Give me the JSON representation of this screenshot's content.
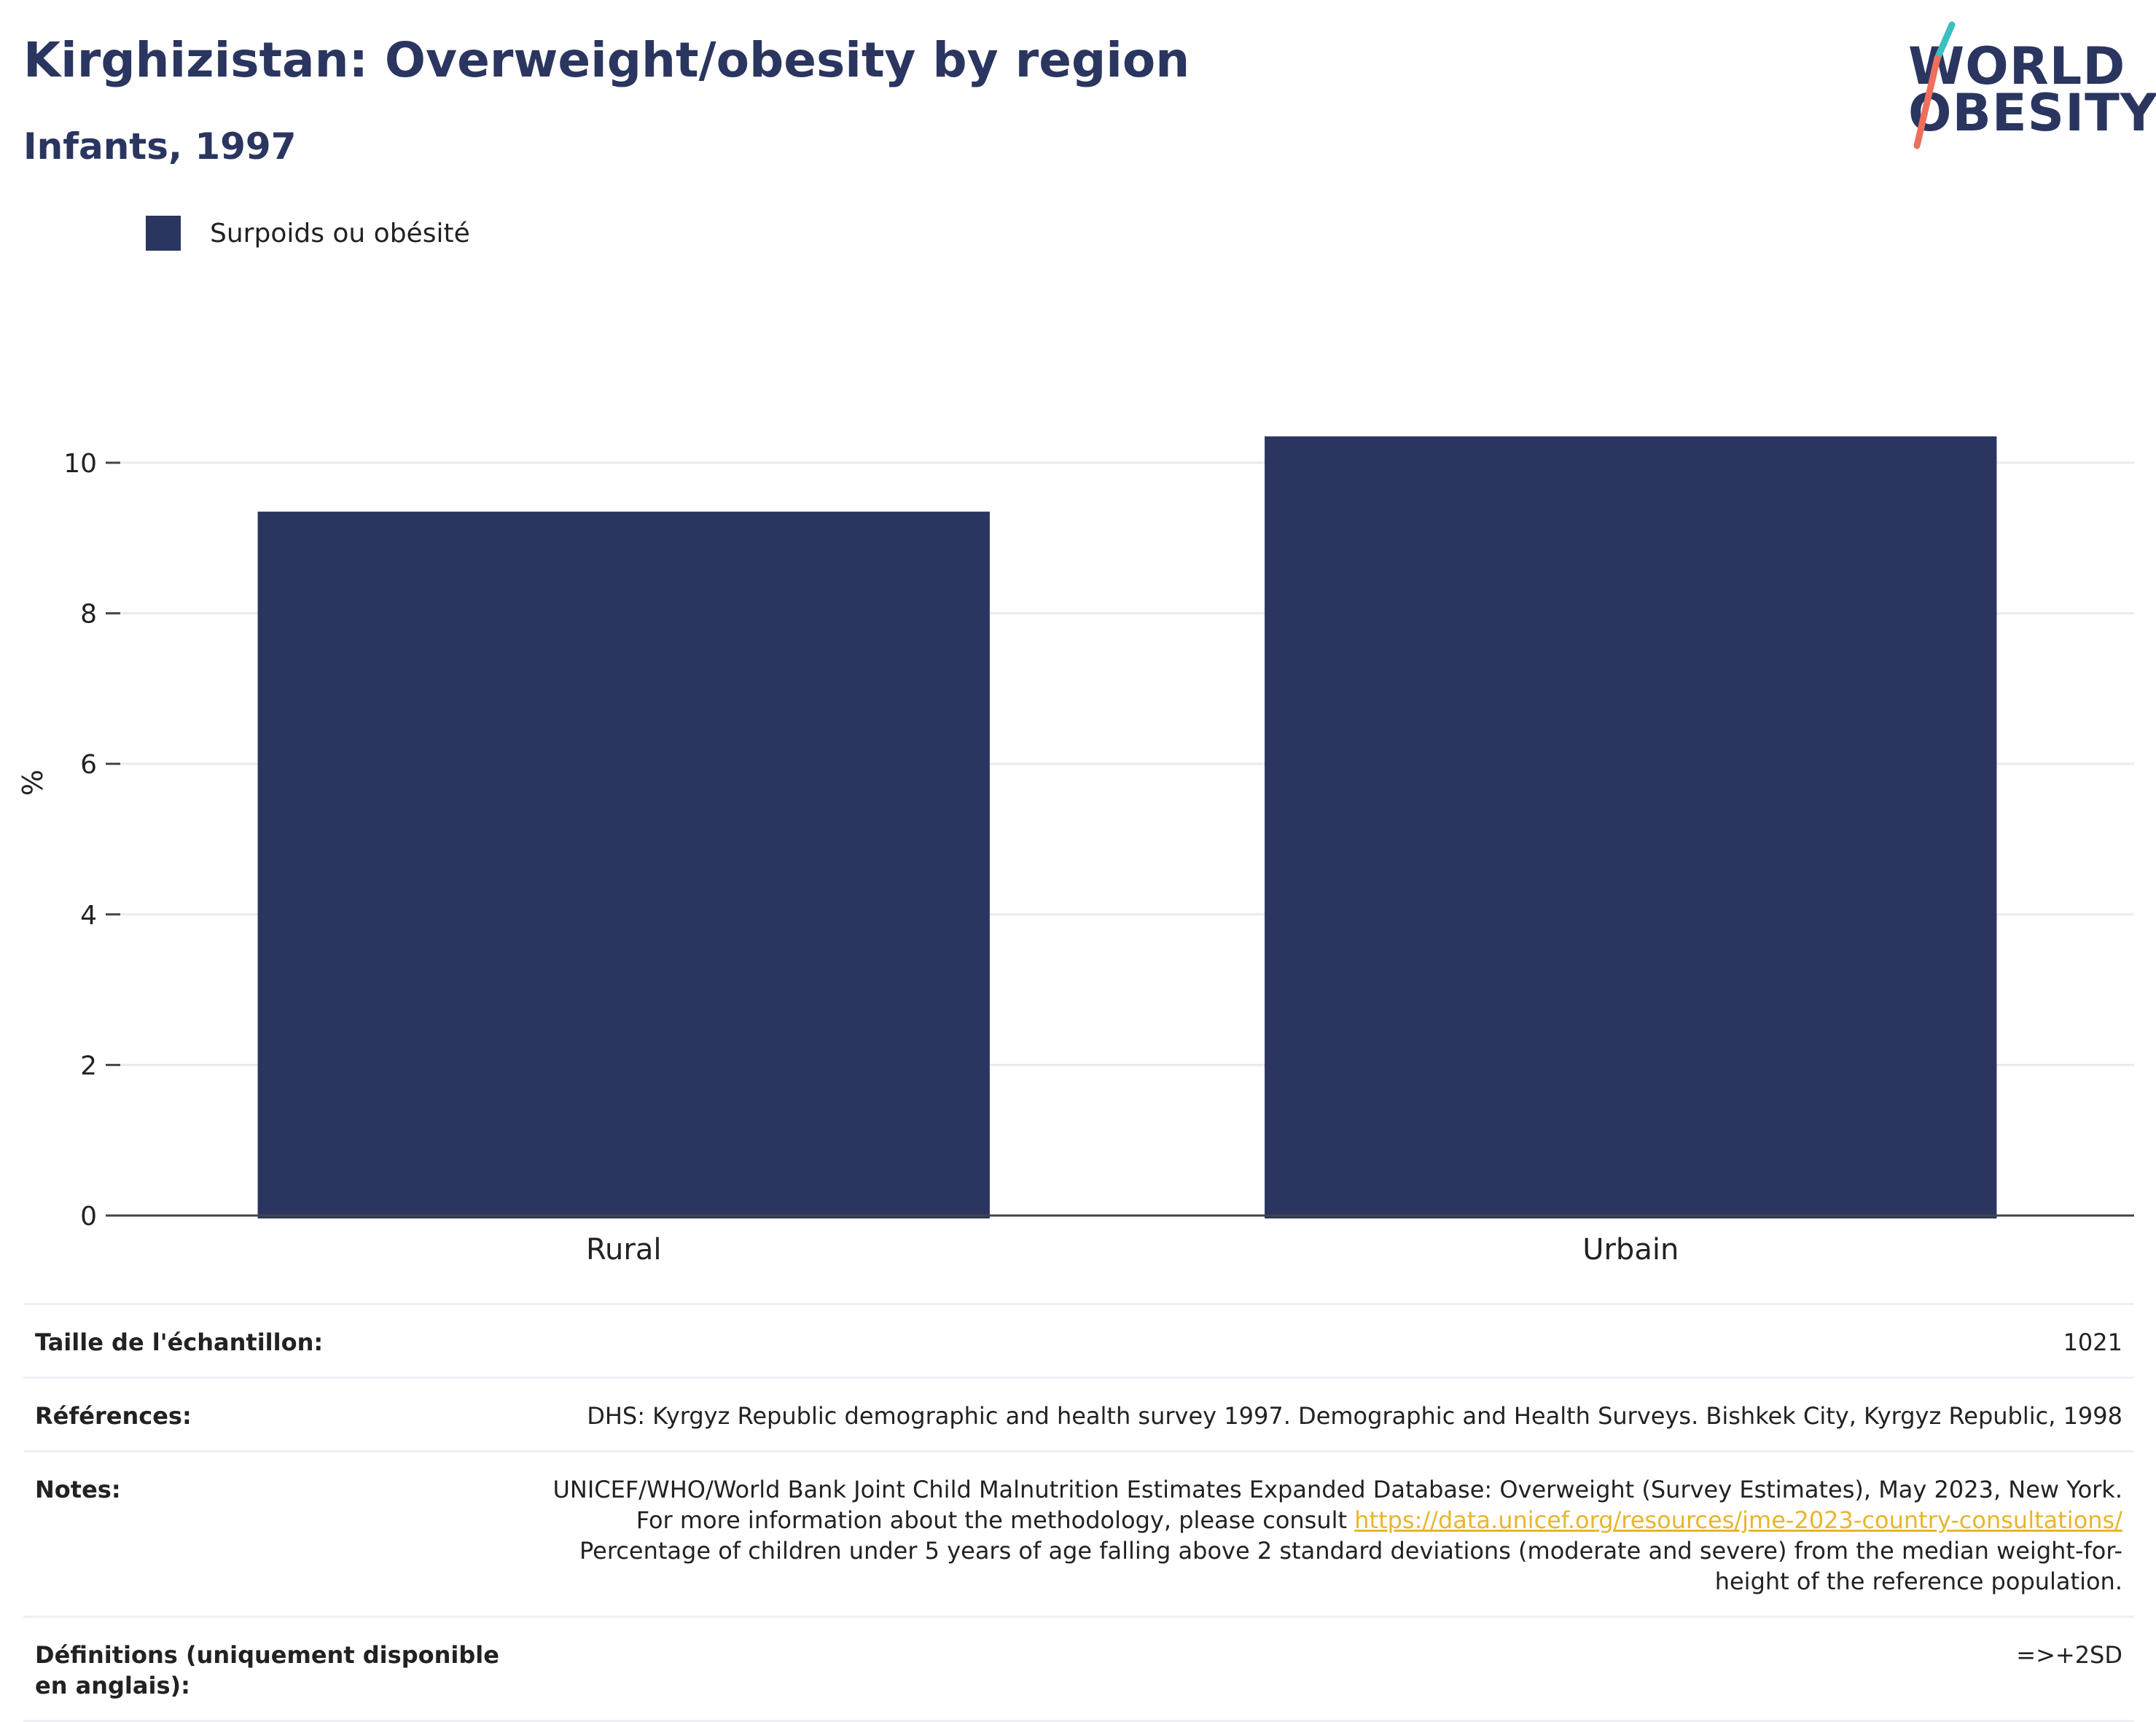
{
  "header": {
    "title": "Kirghizistan: Overweight/obesity by region",
    "subtitle": "Infants, 1997"
  },
  "logo": {
    "line1": "WORLD",
    "line2": "OBESITY"
  },
  "legend": {
    "label": "Surpoids ou obésité"
  },
  "colors": {
    "bar": "#2a3560",
    "slash_teal": "#3bbfbf",
    "slash_coral": "#ef6f5e",
    "link": "#e8b52c"
  },
  "chart_data": {
    "type": "bar",
    "categories": [
      "Rural",
      "Urbain"
    ],
    "series": [
      {
        "name": "Surpoids ou obésité",
        "values": [
          9.35,
          10.35
        ]
      }
    ],
    "title": "Kirghizistan: Overweight/obesity by region",
    "subtitle": "Infants, 1997",
    "xlabel": "",
    "ylabel": "%",
    "ylim": [
      0,
      11.5
    ],
    "yticks": [
      0,
      2,
      4,
      6,
      8,
      10
    ],
    "grid": true,
    "legend_position": "top-left"
  },
  "info": {
    "sample_label": "Taille de l'échantillon:",
    "sample_value": "1021",
    "refs_label": "Références:",
    "refs_value": "DHS: Kyrgyz Republic demographic and health survey 1997. Demographic and Health Surveys. Bishkek City, Kyrgyz Republic, 1998",
    "notes_label": "Notes:",
    "notes_text1": "UNICEF/WHO/World Bank Joint Child Malnutrition Estimates Expanded Database: Overweight (Survey Estimates), May 2023, New York. For more information about the methodology, please consult ",
    "notes_link": "https://data.unicef.org/resources/jme-2023-country-consultations/",
    "notes_text2": "Percentage of children under 5 years of age falling above 2 standard deviations (moderate and severe) from the median weight-for-height of the reference population.",
    "defs_label": "Définitions (uniquement disponible en anglais):",
    "defs_value": "=>+2SD"
  }
}
